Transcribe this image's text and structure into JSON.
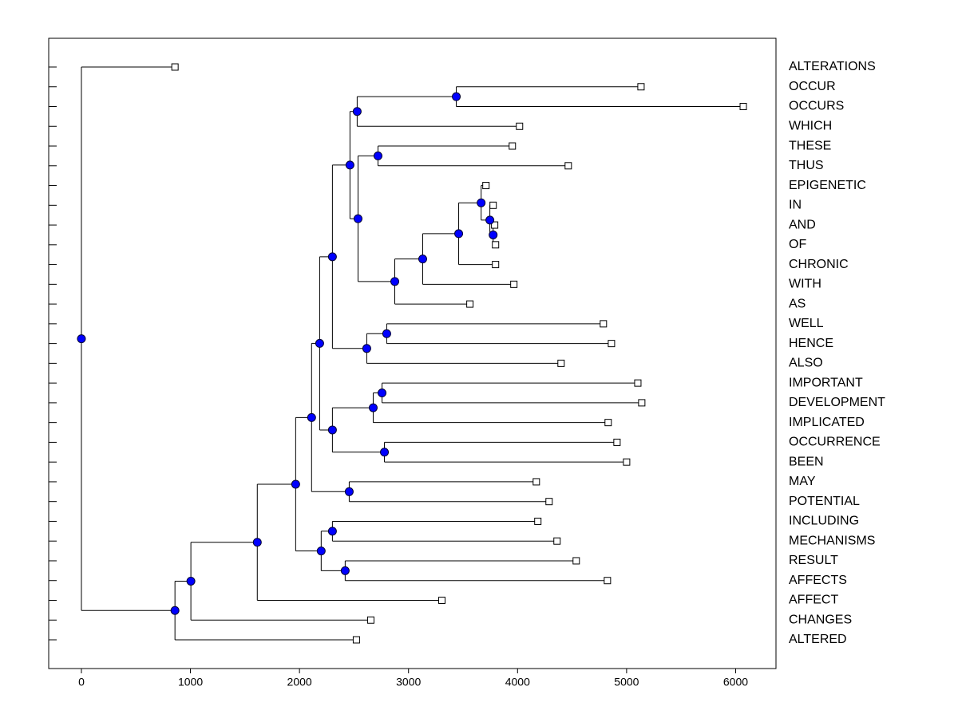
{
  "chart_data": {
    "type": "dendrogram",
    "xlim": [
      -300,
      6370
    ],
    "xticks": [
      0,
      1000,
      2000,
      3000,
      4000,
      5000,
      6000
    ],
    "node_color": "#0000ff",
    "leaf_color": "#ffffff",
    "tree": {
      "value": 0,
      "children": [
        {
          "label": "ALTERATIONS",
          "value": 858
        },
        {
          "value": 858,
          "children": [
            {
              "value": 1004,
              "children": [
                {
                  "value": 1613,
                  "children": [
                    {
                      "value": 1965,
                      "children": [
                        {
                          "value": 2111,
                          "children": [
                            {
                              "value": 2185,
                              "children": [
                                {
                                  "value": 2302,
                                  "children": [
                                    {
                                      "value": 2463,
                                      "children": [
                                        {
                                          "value": 2529,
                                          "children": [
                                            {
                                              "value": 3438,
                                              "children": [
                                                {
                                                  "label": "OCCUR",
                                                  "value": 5132
                                                },
                                                {
                                                  "label": "OCCURS",
                                                  "value": 6070
                                                }
                                              ]
                                            },
                                            {
                                              "label": "WHICH",
                                              "value": 4018
                                            }
                                          ]
                                        },
                                        {
                                          "value": 2537,
                                          "children": [
                                            {
                                              "value": 2720,
                                              "children": [
                                                {
                                                  "label": "THESE",
                                                  "value": 3952
                                                },
                                                {
                                                  "label": "THUS",
                                                  "value": 4465
                                                }
                                              ]
                                            },
                                            {
                                              "value": 2874,
                                              "children": [
                                                {
                                                  "value": 3130,
                                                  "children": [
                                                    {
                                                      "value": 3460,
                                                      "children": [
                                                        {
                                                          "value": 3666,
                                                          "children": [
                                                            {
                                                              "label": "EPIGENETIC",
                                                              "value": 3710
                                                            },
                                                            {
                                                              "value": 3746,
                                                              "children": [
                                                                {
                                                                  "label": "IN",
                                                                  "value": 3776
                                                                },
                                                                {
                                                                  "value": 3776,
                                                                  "children": [
                                                                    {
                                                                      "label": "AND",
                                                                      "value": 3790
                                                                    },
                                                                    {
                                                                      "label": "OF",
                                                                      "value": 3798
                                                                    }
                                                                  ]
                                                                }
                                                              ]
                                                            }
                                                          ]
                                                        },
                                                        {
                                                          "label": "CHRONIC",
                                                          "value": 3798
                                                        }
                                                      ]
                                                    },
                                                    {
                                                      "label": "WITH",
                                                      "value": 3966
                                                    }
                                                  ]
                                                },
                                                {
                                                  "label": "AS",
                                                  "value": 3563
                                                }
                                              ]
                                            }
                                          ]
                                        }
                                      ]
                                    },
                                    {
                                      "value": 2617,
                                      "children": [
                                        {
                                          "value": 2800,
                                          "children": [
                                            {
                                              "label": "WELL",
                                              "value": 4787
                                            },
                                            {
                                              "label": "HENCE",
                                              "value": 4861
                                            }
                                          ]
                                        },
                                        {
                                          "label": "ALSO",
                                          "value": 4399
                                        }
                                      ]
                                    }
                                  ]
                                },
                                {
                                  "value": 2302,
                                  "children": [
                                    {
                                      "value": 2676,
                                      "children": [
                                        {
                                          "value": 2757,
                                          "children": [
                                            {
                                              "label": "IMPORTANT",
                                              "value": 5103
                                            },
                                            {
                                              "label": "DEVELOPMENT",
                                              "value": 5139
                                            }
                                          ]
                                        },
                                        {
                                          "label": "IMPLICATED",
                                          "value": 4831
                                        }
                                      ]
                                    },
                                    {
                                      "value": 2779,
                                      "children": [
                                        {
                                          "label": "OCCURRENCE",
                                          "value": 4912
                                        },
                                        {
                                          "label": "BEEN",
                                          "value": 5000
                                        }
                                      ]
                                    }
                                  ]
                                }
                              ]
                            },
                            {
                              "value": 2456,
                              "children": [
                                {
                                  "label": "MAY",
                                  "value": 4172
                                },
                                {
                                  "label": "POTENTIAL",
                                  "value": 4289
                                }
                              ]
                            }
                          ]
                        },
                        {
                          "value": 2199,
                          "children": [
                            {
                              "value": 2302,
                              "children": [
                                {
                                  "label": "INCLUDING",
                                  "value": 4186
                                },
                                {
                                  "label": "MECHANISMS",
                                  "value": 4362
                                }
                              ]
                            },
                            {
                              "value": 2419,
                              "children": [
                                {
                                  "label": "RESULT",
                                  "value": 4538
                                },
                                {
                                  "label": "AFFECTS",
                                  "value": 4824
                                }
                              ]
                            }
                          ]
                        }
                      ]
                    },
                    {
                      "label": "AFFECT",
                      "value": 3306
                    }
                  ]
                },
                {
                  "label": "CHANGES",
                  "value": 2654
                }
              ]
            },
            {
              "label": "ALTERED",
              "value": 2522
            }
          ]
        }
      ]
    }
  }
}
